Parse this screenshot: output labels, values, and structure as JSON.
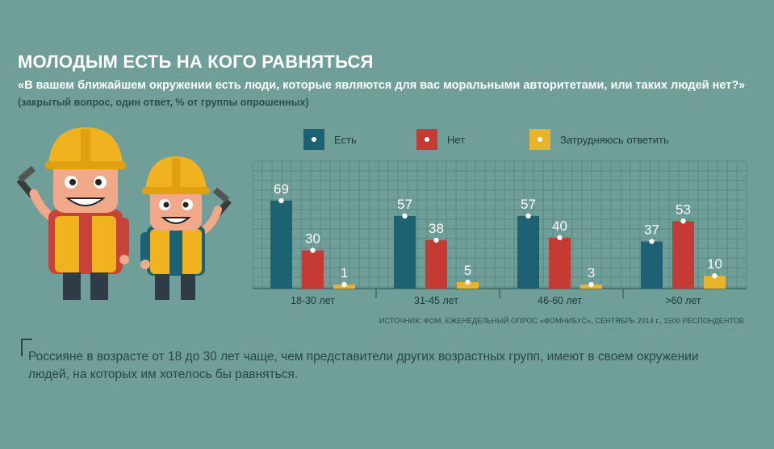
{
  "header": {
    "title": "МОЛОДЫМ ЕСТЬ НА КОГО РАВНЯТЬСЯ",
    "question": "«В вашем ближайшем окружении есть люди, которые являются для вас моральными авторитетами, или таких людей нет?»",
    "question_note": "(закрытый вопрос, один ответ, % от группы опрошенных)"
  },
  "chart_data": {
    "type": "bar",
    "categories": [
      "18-30 лет",
      "31-45 лет",
      "46-60 лет",
      ">60 лет"
    ],
    "series": [
      {
        "name": "Есть",
        "color": "#1d6272",
        "values": [
          69,
          57,
          57,
          37
        ]
      },
      {
        "name": "Нет",
        "color": "#c53a32",
        "values": [
          30,
          38,
          40,
          53
        ]
      },
      {
        "name": "Затрудняюсь ответить",
        "color": "#eab32c",
        "values": [
          1,
          5,
          3,
          10
        ]
      }
    ],
    "ylim": [
      0,
      100
    ],
    "grid": true,
    "legend_position": "top"
  },
  "source": "ИСТОЧНИК: ФОМ, ЕЖЕНЕДЕЛЬНЫЙ ОПРОС «ФОМНИБУС», СЕНТЯБРЬ 2014 г., 1500 РЕСПОНДЕНТОВ",
  "conclusion": "Россияне в возрасте от 18 до 30 лет чаще, чем представители других возрастных групп, имеют в своем окружении людей, на которых им хотелось бы равняться."
}
